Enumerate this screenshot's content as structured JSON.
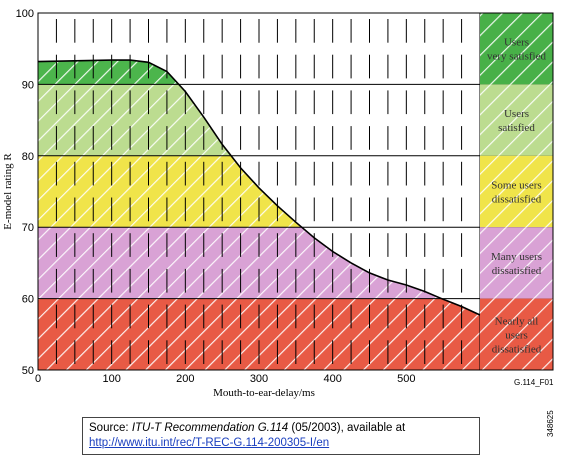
{
  "chart_data": {
    "type": "area",
    "xlabel": "Mouth-to-ear-delay/ms",
    "ylabel": "E-model rating R",
    "xlim": [
      0,
      600
    ],
    "ylim": [
      50,
      100
    ],
    "xticks": [
      0,
      100,
      200,
      300,
      400,
      500
    ],
    "yticks": [
      50,
      60,
      70,
      80,
      90,
      100
    ],
    "grid": "vertical hatch marks every 25 ms",
    "curve": {
      "x": [
        0,
        50,
        100,
        125,
        150,
        175,
        200,
        225,
        250,
        275,
        300,
        325,
        350,
        375,
        400,
        425,
        450,
        475,
        500,
        525,
        550,
        575,
        600
      ],
      "y": [
        93.2,
        93.3,
        93.4,
        93.4,
        93.1,
        91.8,
        89.0,
        85.4,
        81.6,
        78.3,
        75.5,
        73.0,
        70.7,
        68.5,
        66.6,
        65.0,
        63.6,
        62.6,
        61.9,
        61.0,
        59.9,
        58.9,
        57.7
      ]
    },
    "zones": [
      {
        "label": "Users\nvery satisfied",
        "from": 90,
        "to": 100,
        "color": "#4cb54c",
        "legend_color": "#48b048"
      },
      {
        "label": "Users\nsatisfied",
        "from": 80,
        "to": 90,
        "color": "#bcdc90",
        "legend_color": "#bcdc90"
      },
      {
        "label": "Some users\ndissatisfied",
        "from": 70,
        "to": 80,
        "color": "#f0e44a",
        "legend_color": "#f0e44a"
      },
      {
        "label": "Many users\ndissatisfied",
        "from": 60,
        "to": 70,
        "color": "#d9a2d5",
        "legend_color": "#d9a2d5"
      },
      {
        "label": "Nearly all\nusers\ndissatisfied",
        "from": 50,
        "to": 60,
        "color": "#e85a45",
        "legend_color": "#e85a45"
      }
    ],
    "figure_id": "G.114_F01"
  },
  "source": {
    "prefix": "Source:  ",
    "reference": "ITU-T Recommendation G.114",
    "suffix": " (05/2003), available at",
    "link": "http://www.itu.int/rec/T-REC-G.114-200305-I/en"
  },
  "doc_id": "348625"
}
